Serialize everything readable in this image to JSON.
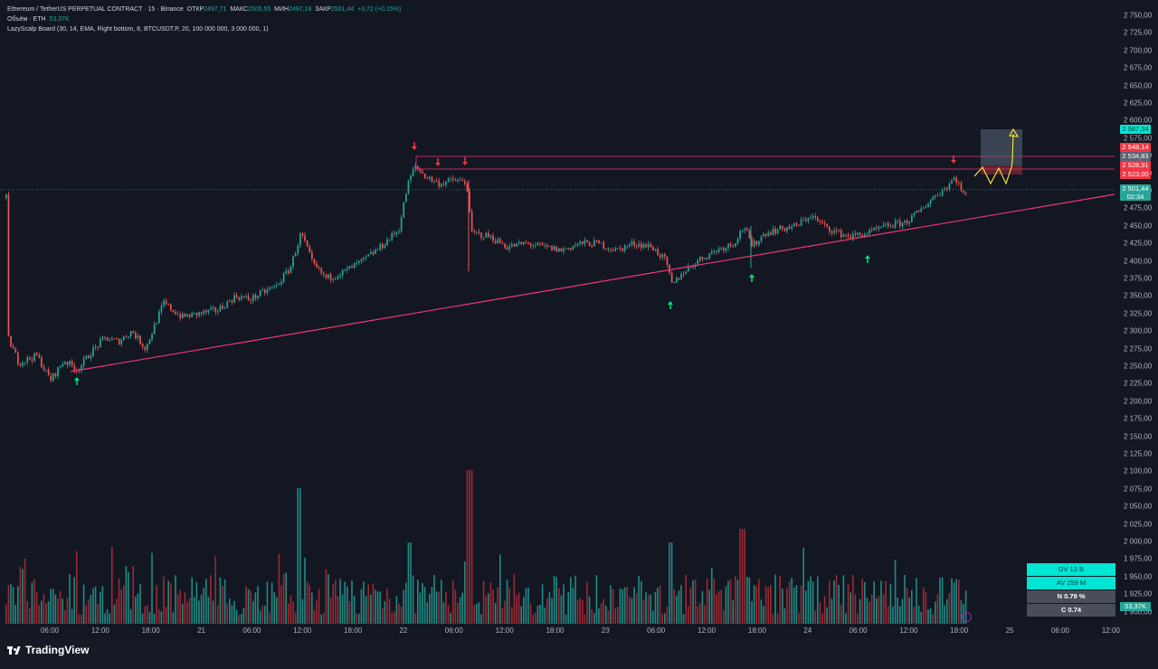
{
  "legend": {
    "symbol": "Ethereum / TetherUS PERPETUAL CONTRACT · 15 · Binance",
    "open_label": "ОТКР",
    "open": "2497,71",
    "high_label": "МАКС",
    "high": "2505,55",
    "low_label": "МИН",
    "low": "2497,18",
    "close_label": "ЗАКР",
    "close": "2501,44",
    "change": "+3,72 (+0,15%)",
    "volume_label": "Объём · ETH",
    "volume": "53,37K",
    "indicator": "LazyScalp Board (30, 14, EMA, Right bottom, 8, BTCUSDT.P, 20, 100 000 000, 3 000 000, 1)"
  },
  "price_axis": {
    "ticks": [
      "2 750,00",
      "2 725,00",
      "2 700,00",
      "2 675,00",
      "2 650,00",
      "2 625,00",
      "2 600,00",
      "2 575,00",
      "2 550,00",
      "2 525,00",
      "2 500,00",
      "2 475,00",
      "2 450,00",
      "2 425,00",
      "2 400,00",
      "2 375,00",
      "2 350,00",
      "2 325,00",
      "2 300,00",
      "2 275,00",
      "2 250,00",
      "2 225,00",
      "2 200,00",
      "2 175,00",
      "2 150,00",
      "2 125,00",
      "2 100,00",
      "2 075,00",
      "2 050,00",
      "2 025,00",
      "2 000,00",
      "1 975,00",
      "1 950,00",
      "1 925,00",
      "1 900,00"
    ]
  },
  "price_labels": {
    "target": "2 587,34",
    "red1": "2 548,14",
    "gray1": "2 534,83",
    "red2": "2 528,91",
    "red3": "2 523,00",
    "current": "2 501,44",
    "countdown": "02:34"
  },
  "time_axis": {
    "ticks": [
      "06:00",
      "12:00",
      "18:00",
      "21",
      "06:00",
      "12:00",
      "18:00",
      "22",
      "06:00",
      "12:00",
      "18:00",
      "23",
      "06:00",
      "12:00",
      "18:00",
      "24",
      "06:00",
      "12:00",
      "18:00",
      "25",
      "06:00",
      "12:00"
    ]
  },
  "volume_axis_label": "53,37K",
  "stats": {
    "dv": "DV 13 B",
    "av": "AV 259 M",
    "n": "N 0.79 %",
    "c": "C  0.74"
  },
  "brand": "TradingView",
  "colors": {
    "bull": "#26a69a",
    "bear": "#ef5350",
    "volume_bull": "#1f8b84",
    "volume_bear": "#9b2a33",
    "trendline": "#f23672",
    "resistance": "#f23672",
    "arrow_up": "#00e676",
    "arrow_down": "#f23645",
    "projection": "#ffeb3b",
    "target_box": "#5b6779"
  },
  "icons": {
    "replay": "replay-icon",
    "logo": "tradingview-logo-icon"
  }
}
